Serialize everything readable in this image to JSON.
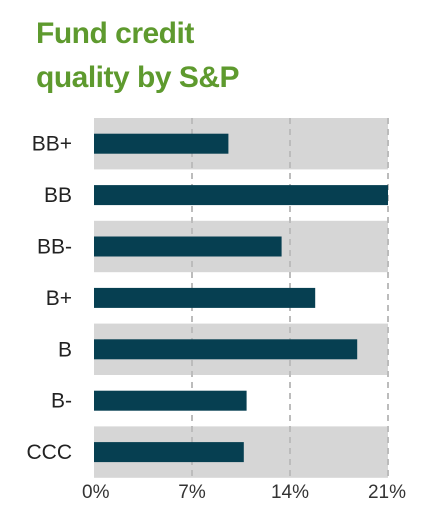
{
  "title_lines": [
    "Fund credit",
    "quality by S&P"
  ],
  "colors": {
    "title": "#5e9a2e",
    "bar": "#063f51",
    "band": "#d6d6d6",
    "grid": "#bcbcbc"
  },
  "chart_data": {
    "type": "bar",
    "orientation": "horizontal",
    "title": "Fund credit quality by S&P",
    "categories": [
      "BB+",
      "BB",
      "BB-",
      "B+",
      "B",
      "B-",
      "CCC"
    ],
    "values": [
      9.6,
      21.0,
      13.4,
      15.8,
      18.8,
      10.9,
      10.7
    ],
    "xlim": [
      0,
      21
    ],
    "xticks": [
      0,
      7,
      14,
      21
    ],
    "xtick_labels": [
      "0%",
      "7%",
      "14%",
      "21%"
    ],
    "grid": true,
    "alternating_bands": true
  }
}
